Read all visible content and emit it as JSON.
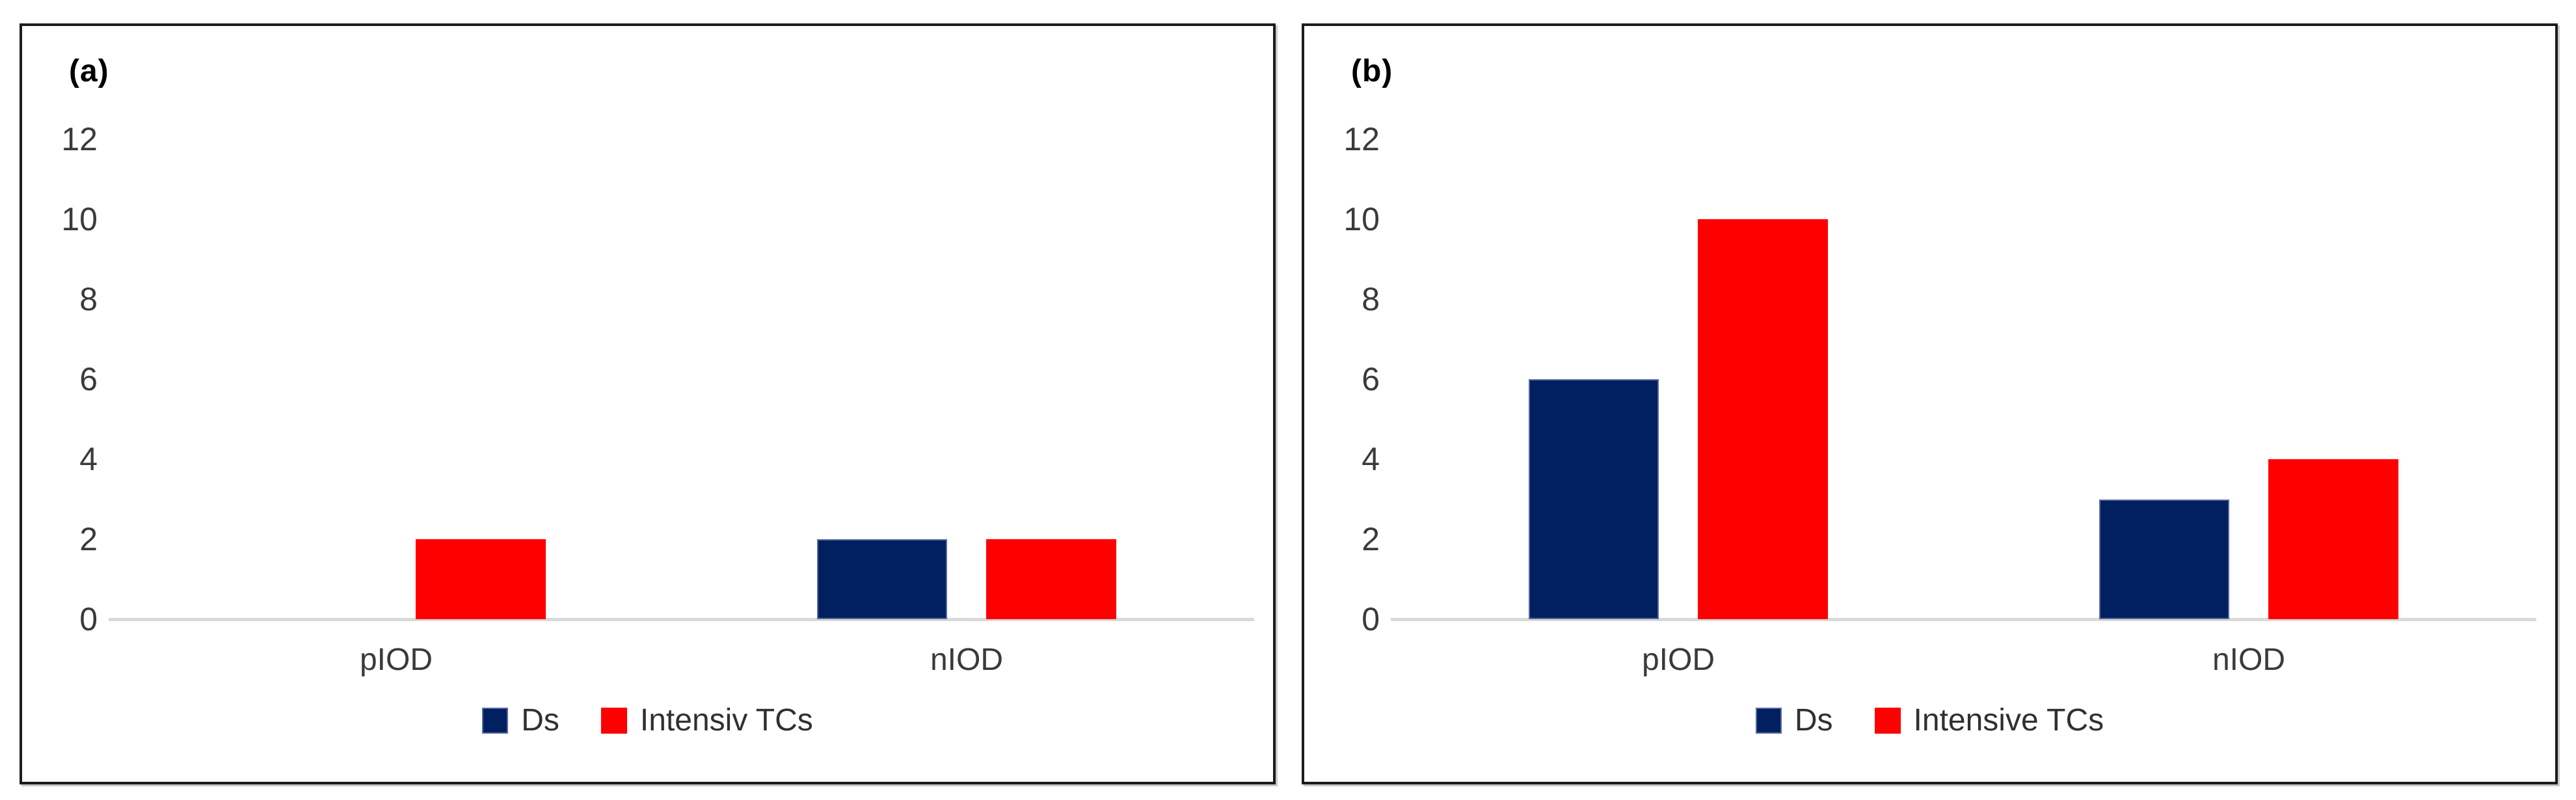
{
  "figure_type": "two-panel clustered bar chart",
  "chart_data": [
    {
      "type": "bar",
      "panel_label": "(a)",
      "categories": [
        "pIOD",
        "nIOD"
      ],
      "series": [
        {
          "name": "Ds",
          "color": "#002060",
          "border": "#5a6a9e",
          "values": [
            0,
            2
          ]
        },
        {
          "name": "Intensiv TCs",
          "color": "#ff0000",
          "border": "#ff0000",
          "values": [
            2,
            2
          ]
        }
      ],
      "ylim": [
        0,
        12
      ],
      "y_ticks": [
        0,
        2,
        4,
        6,
        8,
        10,
        12
      ],
      "grid": false,
      "legend_position": "bottom-center"
    },
    {
      "type": "bar",
      "panel_label": "(b)",
      "categories": [
        "pIOD",
        "nIOD"
      ],
      "series": [
        {
          "name": "Ds",
          "color": "#002060",
          "border": "#5a6a9e",
          "values": [
            6,
            3
          ]
        },
        {
          "name": "Intensive TCs",
          "color": "#ff0000",
          "border": "#ff0000",
          "values": [
            10,
            4
          ]
        }
      ],
      "ylim": [
        0,
        12
      ],
      "y_ticks": [
        0,
        2,
        4,
        6,
        8,
        10,
        12
      ],
      "grid": false,
      "legend_position": "bottom-center"
    }
  ],
  "colors": {
    "bar_navy": "#002060",
    "bar_red": "#ff0000",
    "axis_line": "#d9d9d9",
    "tick_text": "#3a3a3a",
    "panel_border": "#1c1c1c"
  }
}
